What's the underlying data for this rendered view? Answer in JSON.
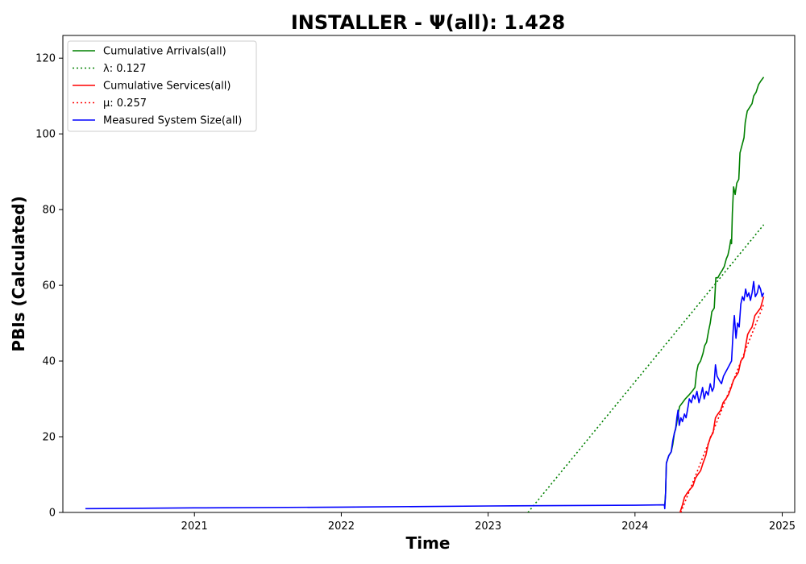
{
  "chart_data": {
    "type": "line",
    "title": "INSTALLER -  Ψ(all): 1.428",
    "xlabel": "Time",
    "ylabel": "PBIs (Calculated)",
    "xlim": [
      "2020-02-09",
      "2025-02-01"
    ],
    "ylim": [
      0,
      126
    ],
    "x_ticks": [
      "2021",
      "2022",
      "2023",
      "2024",
      "2025"
    ],
    "x_tick_dates": [
      "2021-01-01",
      "2022-01-01",
      "2023-01-01",
      "2024-01-01",
      "2025-01-01"
    ],
    "y_ticks": [
      0,
      20,
      40,
      60,
      80,
      100,
      120
    ],
    "grid": false,
    "legend_position": "top-left",
    "series": [
      {
        "name": "Cumulative Arrivals(all)",
        "style": "solid",
        "color": "#008000",
        "points": [
          [
            "2024-03-15",
            2
          ],
          [
            "2024-03-17",
            5
          ],
          [
            "2024-03-19",
            13
          ],
          [
            "2024-03-25",
            15
          ],
          [
            "2024-03-31",
            16
          ],
          [
            "2024-04-04",
            18
          ],
          [
            "2024-04-08",
            21
          ],
          [
            "2024-04-13",
            23
          ],
          [
            "2024-04-17",
            26
          ],
          [
            "2024-04-21",
            28
          ],
          [
            "2024-04-28",
            29
          ],
          [
            "2024-05-05",
            30
          ],
          [
            "2024-05-14",
            31
          ],
          [
            "2024-05-22",
            32
          ],
          [
            "2024-05-29",
            33
          ],
          [
            "2024-06-02",
            37
          ],
          [
            "2024-06-06",
            39
          ],
          [
            "2024-06-12",
            40
          ],
          [
            "2024-06-18",
            42
          ],
          [
            "2024-06-22",
            44
          ],
          [
            "2024-06-27",
            45
          ],
          [
            "2024-07-02",
            48
          ],
          [
            "2024-07-06",
            50
          ],
          [
            "2024-07-10",
            53
          ],
          [
            "2024-07-16",
            54
          ],
          [
            "2024-07-20",
            62
          ],
          [
            "2024-07-25",
            62
          ],
          [
            "2024-07-30",
            63
          ],
          [
            "2024-08-05",
            64
          ],
          [
            "2024-08-10",
            65
          ],
          [
            "2024-08-15",
            67
          ],
          [
            "2024-08-19",
            68
          ],
          [
            "2024-08-23",
            70
          ],
          [
            "2024-08-26",
            72
          ],
          [
            "2024-08-28",
            71
          ],
          [
            "2024-08-30",
            79
          ],
          [
            "2024-09-02",
            86
          ],
          [
            "2024-09-06",
            84
          ],
          [
            "2024-09-10",
            87
          ],
          [
            "2024-09-15",
            88
          ],
          [
            "2024-09-18",
            95
          ],
          [
            "2024-09-23",
            97
          ],
          [
            "2024-09-28",
            99
          ],
          [
            "2024-10-01",
            103
          ],
          [
            "2024-10-06",
            106
          ],
          [
            "2024-10-12",
            107
          ],
          [
            "2024-10-18",
            108
          ],
          [
            "2024-10-22",
            110
          ],
          [
            "2024-10-28",
            111
          ],
          [
            "2024-11-03",
            113
          ],
          [
            "2024-11-09",
            114
          ],
          [
            "2024-11-16",
            115
          ]
        ]
      },
      {
        "name": "λ: 0.127",
        "style": "dotted",
        "color": "#008000",
        "points": [
          [
            "2023-04-10",
            0
          ],
          [
            "2024-11-16",
            76
          ]
        ]
      },
      {
        "name": "Cumulative Services(all)",
        "style": "solid",
        "color": "#ff0000",
        "points": [
          [
            "2024-04-22",
            0
          ],
          [
            "2024-04-28",
            2
          ],
          [
            "2024-05-03",
            4
          ],
          [
            "2024-05-09",
            5
          ],
          [
            "2024-05-16",
            6
          ],
          [
            "2024-05-24",
            7
          ],
          [
            "2024-05-30",
            9
          ],
          [
            "2024-06-05",
            10
          ],
          [
            "2024-06-12",
            11
          ],
          [
            "2024-06-18",
            13
          ],
          [
            "2024-06-25",
            15
          ],
          [
            "2024-07-01",
            18
          ],
          [
            "2024-07-07",
            20
          ],
          [
            "2024-07-13",
            21
          ],
          [
            "2024-07-19",
            25
          ],
          [
            "2024-07-25",
            26
          ],
          [
            "2024-08-01",
            27
          ],
          [
            "2024-08-07",
            29
          ],
          [
            "2024-08-14",
            30
          ],
          [
            "2024-08-20",
            31
          ],
          [
            "2024-08-27",
            33
          ],
          [
            "2024-09-02",
            35
          ],
          [
            "2024-09-08",
            36
          ],
          [
            "2024-09-14",
            37
          ],
          [
            "2024-09-20",
            40
          ],
          [
            "2024-09-27",
            41
          ],
          [
            "2024-10-02",
            44
          ],
          [
            "2024-10-07",
            47
          ],
          [
            "2024-10-12",
            48
          ],
          [
            "2024-10-18",
            49
          ],
          [
            "2024-10-25",
            52
          ],
          [
            "2024-11-01",
            53
          ],
          [
            "2024-11-08",
            54
          ],
          [
            "2024-11-16",
            57
          ]
        ]
      },
      {
        "name": "μ: 0.257",
        "style": "dotted",
        "color": "#ff0000",
        "points": [
          [
            "2024-04-24",
            0
          ],
          [
            "2024-11-16",
            55
          ]
        ]
      },
      {
        "name": "Measured System Size(all)",
        "style": "solid",
        "color": "#0000ff",
        "points": [
          [
            "2020-04-05",
            1
          ],
          [
            "2021-01-01",
            1.2
          ],
          [
            "2022-01-01",
            1.4
          ],
          [
            "2023-01-01",
            1.7
          ],
          [
            "2024-01-01",
            1.9
          ],
          [
            "2024-03-14",
            2
          ],
          [
            "2024-03-15",
            1
          ],
          [
            "2024-03-17",
            5
          ],
          [
            "2024-03-19",
            13
          ],
          [
            "2024-03-25",
            15
          ],
          [
            "2024-03-31",
            16
          ],
          [
            "2024-04-04",
            19
          ],
          [
            "2024-04-08",
            21
          ],
          [
            "2024-04-11",
            22
          ],
          [
            "2024-04-14",
            25
          ],
          [
            "2024-04-17",
            27
          ],
          [
            "2024-04-20",
            23
          ],
          [
            "2024-04-24",
            25
          ],
          [
            "2024-04-28",
            24
          ],
          [
            "2024-05-03",
            26
          ],
          [
            "2024-05-07",
            25
          ],
          [
            "2024-05-12",
            28
          ],
          [
            "2024-05-15",
            30
          ],
          [
            "2024-05-20",
            29
          ],
          [
            "2024-05-25",
            31
          ],
          [
            "2024-05-29",
            30
          ],
          [
            "2024-06-03",
            32
          ],
          [
            "2024-06-08",
            29
          ],
          [
            "2024-06-13",
            31
          ],
          [
            "2024-06-17",
            33
          ],
          [
            "2024-06-21",
            30
          ],
          [
            "2024-06-26",
            32
          ],
          [
            "2024-07-01",
            31
          ],
          [
            "2024-07-06",
            34
          ],
          [
            "2024-07-11",
            32
          ],
          [
            "2024-07-15",
            33
          ],
          [
            "2024-07-19",
            39
          ],
          [
            "2024-07-23",
            36
          ],
          [
            "2024-07-28",
            35
          ],
          [
            "2024-08-03",
            34
          ],
          [
            "2024-08-08",
            36
          ],
          [
            "2024-08-13",
            37
          ],
          [
            "2024-08-18",
            38
          ],
          [
            "2024-08-23",
            39
          ],
          [
            "2024-08-28",
            40
          ],
          [
            "2024-09-01",
            48
          ],
          [
            "2024-09-04",
            52
          ],
          [
            "2024-09-08",
            46
          ],
          [
            "2024-09-12",
            50
          ],
          [
            "2024-09-16",
            49
          ],
          [
            "2024-09-20",
            55
          ],
          [
            "2024-09-24",
            57
          ],
          [
            "2024-09-28",
            56
          ],
          [
            "2024-10-02",
            59
          ],
          [
            "2024-10-06",
            57
          ],
          [
            "2024-10-10",
            58
          ],
          [
            "2024-10-14",
            56
          ],
          [
            "2024-10-18",
            58
          ],
          [
            "2024-10-22",
            61
          ],
          [
            "2024-10-26",
            57
          ],
          [
            "2024-10-31",
            58
          ],
          [
            "2024-11-04",
            60
          ],
          [
            "2024-11-08",
            59
          ],
          [
            "2024-11-12",
            57
          ],
          [
            "2024-11-16",
            58
          ]
        ]
      }
    ]
  }
}
